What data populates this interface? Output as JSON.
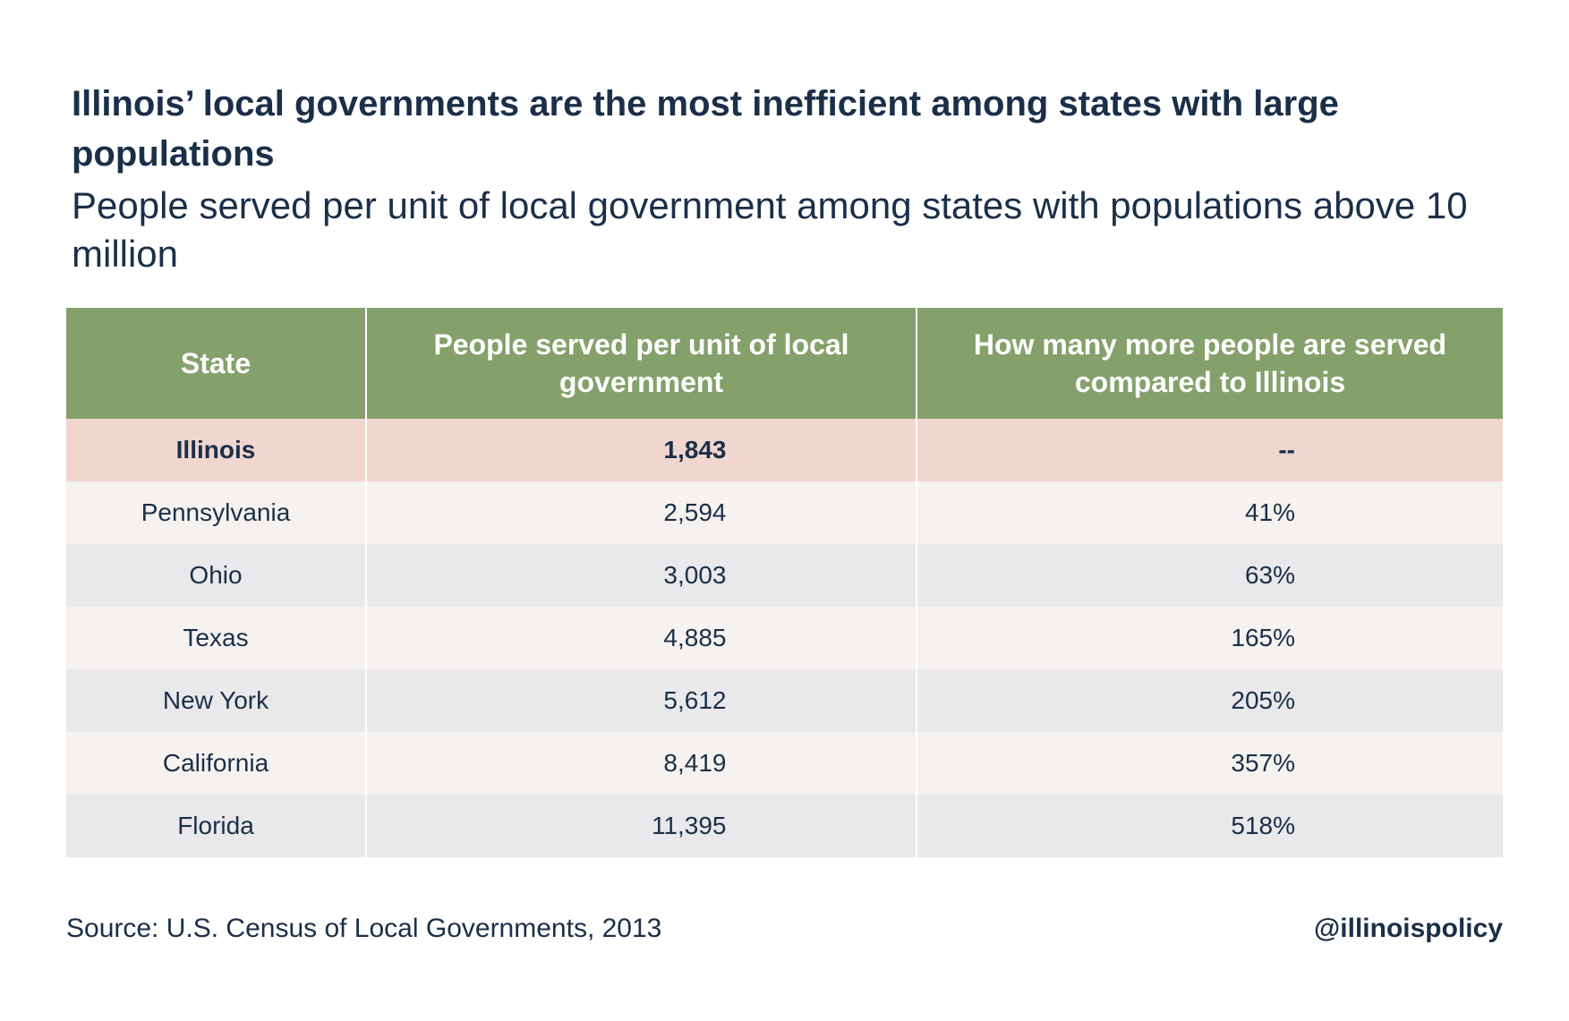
{
  "chart_data": {
    "type": "table",
    "title": "Illinois’ local governments are the most inefficient among states with large populations",
    "subtitle": "People served per unit of local government among states with populations above 10 million",
    "columns": [
      "State",
      "People served per unit of local government",
      "How many more people are served compared to Illinois"
    ],
    "rows": [
      {
        "state": "Illinois",
        "people_served": "1,843",
        "more_than_illinois": "--",
        "highlight": true
      },
      {
        "state": "Pennsylvania",
        "people_served": "2,594",
        "more_than_illinois": "41%"
      },
      {
        "state": "Ohio",
        "people_served": "3,003",
        "more_than_illinois": "63%"
      },
      {
        "state": "Texas",
        "people_served": "4,885",
        "more_than_illinois": "165%"
      },
      {
        "state": "New York",
        "people_served": "5,612",
        "more_than_illinois": "205%"
      },
      {
        "state": "California",
        "people_served": "8,419",
        "more_than_illinois": "357%"
      },
      {
        "state": "Florida",
        "people_served": "11,395",
        "more_than_illinois": "518%"
      }
    ],
    "source": "Source: U.S. Census of Local Governments, 2013",
    "handle": "@illinoispolicy"
  },
  "colors": {
    "header_bg": "#85a16b",
    "highlight_row_bg": "#f0d6cf",
    "row_light_bg": "#f5f2ef",
    "row_dark_bg": "#e9e8ea",
    "text": "#1b2f48"
  }
}
